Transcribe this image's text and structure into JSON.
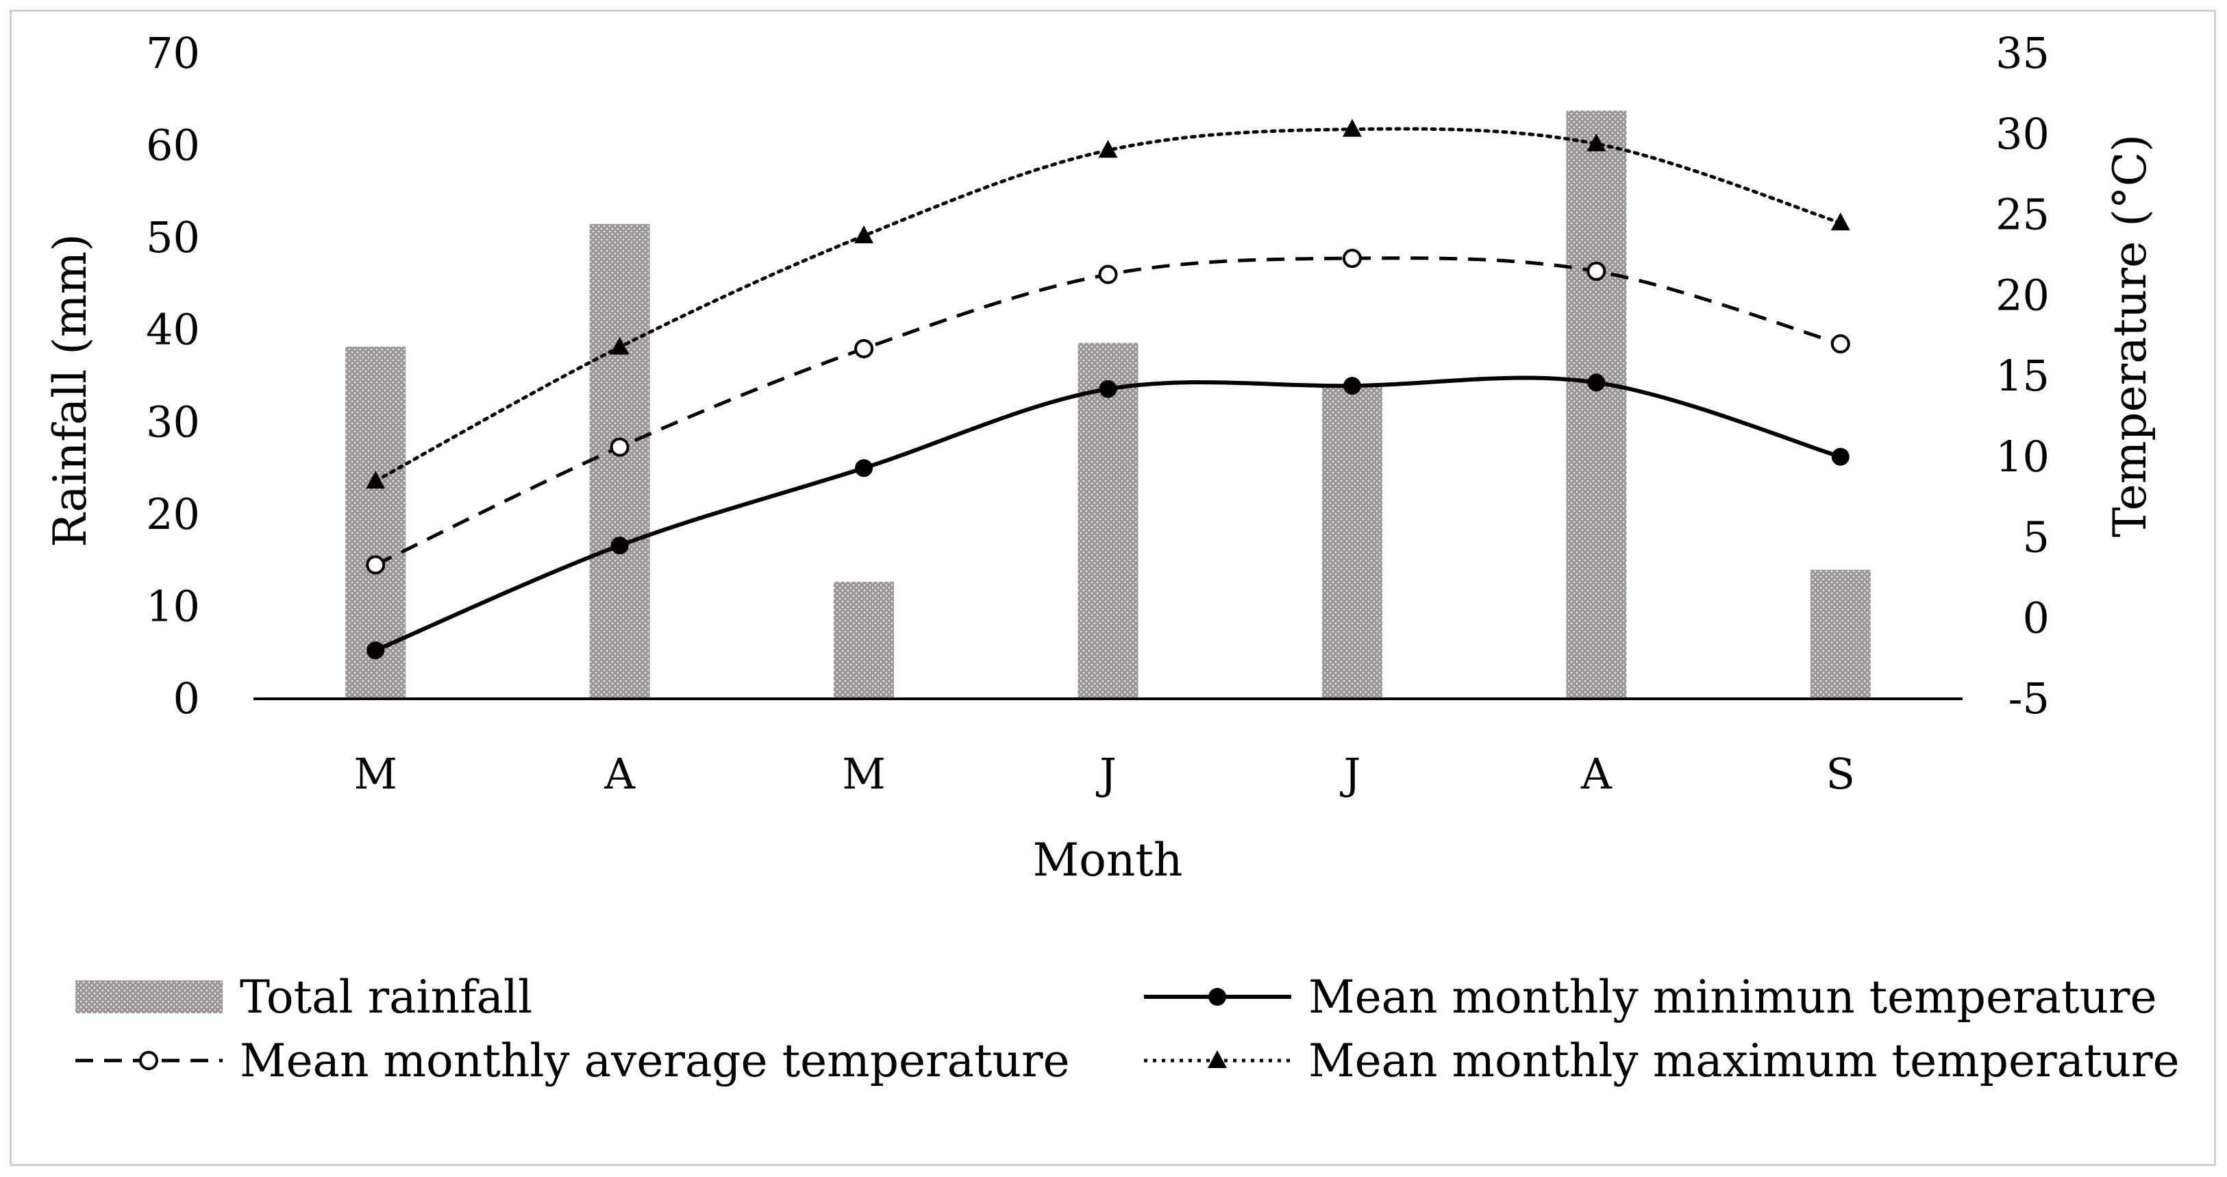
{
  "chart_data": {
    "type": "bar+line",
    "categories": [
      "M",
      "A",
      "M",
      "J",
      "J",
      "A",
      "S"
    ],
    "xlabel": "Month",
    "ylabel_left": "Rainfall (mm)",
    "ylabel_right": "Temperature (°C)",
    "ylim_left": [
      0,
      70
    ],
    "ylim_right": [
      -5,
      35
    ],
    "yticks_left": [
      0,
      10,
      20,
      30,
      40,
      50,
      60,
      70
    ],
    "yticks_right": [
      -5,
      0,
      5,
      10,
      15,
      20,
      25,
      30,
      35
    ],
    "grid": false,
    "legend_position": "bottom",
    "series": [
      {
        "name": "Total rainfall",
        "kind": "bar",
        "axis": "left",
        "values": [
          38.2,
          51.5,
          12.7,
          38.6,
          34.0,
          63.8,
          14.0
        ],
        "color": "#8a8282"
      },
      {
        "name": "Mean monthly minimun temperature",
        "kind": "line",
        "axis": "right",
        "line_style": "solid",
        "marker": "filled-circle",
        "values": [
          -2.0,
          4.5,
          9.3,
          14.2,
          14.4,
          14.6,
          10.0
        ],
        "color": "#000000"
      },
      {
        "name": "Mean monthly average temperature",
        "kind": "line",
        "axis": "right",
        "line_style": "dashed",
        "marker": "open-circle",
        "values": [
          3.3,
          10.6,
          16.7,
          21.3,
          22.3,
          21.5,
          17.0
        ],
        "color": "#000000"
      },
      {
        "name": "Mean monthly maximum temperature",
        "kind": "line",
        "axis": "right",
        "line_style": "dotted",
        "marker": "filled-triangle",
        "values": [
          8.5,
          16.8,
          23.7,
          29.0,
          30.3,
          29.4,
          24.5
        ],
        "color": "#000000"
      }
    ]
  }
}
